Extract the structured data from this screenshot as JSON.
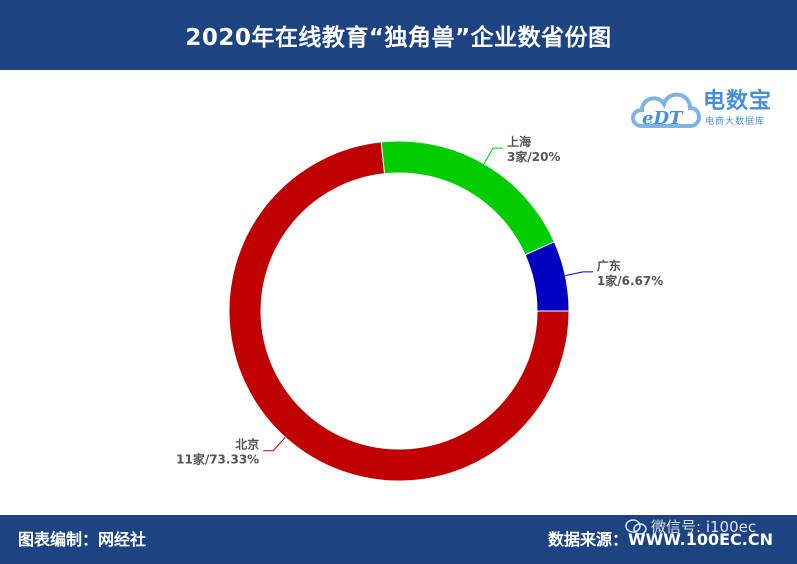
{
  "header": {
    "title": "2020年在线教育“独角兽”企业数省份图"
  },
  "logo": {
    "mark": "eDT",
    "brand": "电数宝",
    "brand_sub": "电商大数据库"
  },
  "footer": {
    "left_text": "图表编制：网经社",
    "right_text": "数据来源：WWW.100EC.CN"
  },
  "watermark": {
    "text": "微信号: i100ec",
    "icon": "wechat-icon"
  },
  "colors": {
    "header_bg": "#1e4382",
    "beijing": "#c00000",
    "shanghai": "#00cc00",
    "guangdong": "#0000c0"
  },
  "chart_data": {
    "type": "pie",
    "style": "donut",
    "title": "2020年在线教育“独角兽”企业数省份图",
    "slices": [
      {
        "name": "北京",
        "value": 11,
        "percent": "73.33%",
        "value_label": "11家/73.33%",
        "color": "#c00000"
      },
      {
        "name": "上海",
        "value": 3,
        "percent": "20%",
        "value_label": "3家/20%",
        "color": "#00cc00"
      },
      {
        "name": "广东",
        "value": 1,
        "percent": "6.67%",
        "value_label": "1家/6.67%",
        "color": "#0000c0"
      }
    ]
  }
}
